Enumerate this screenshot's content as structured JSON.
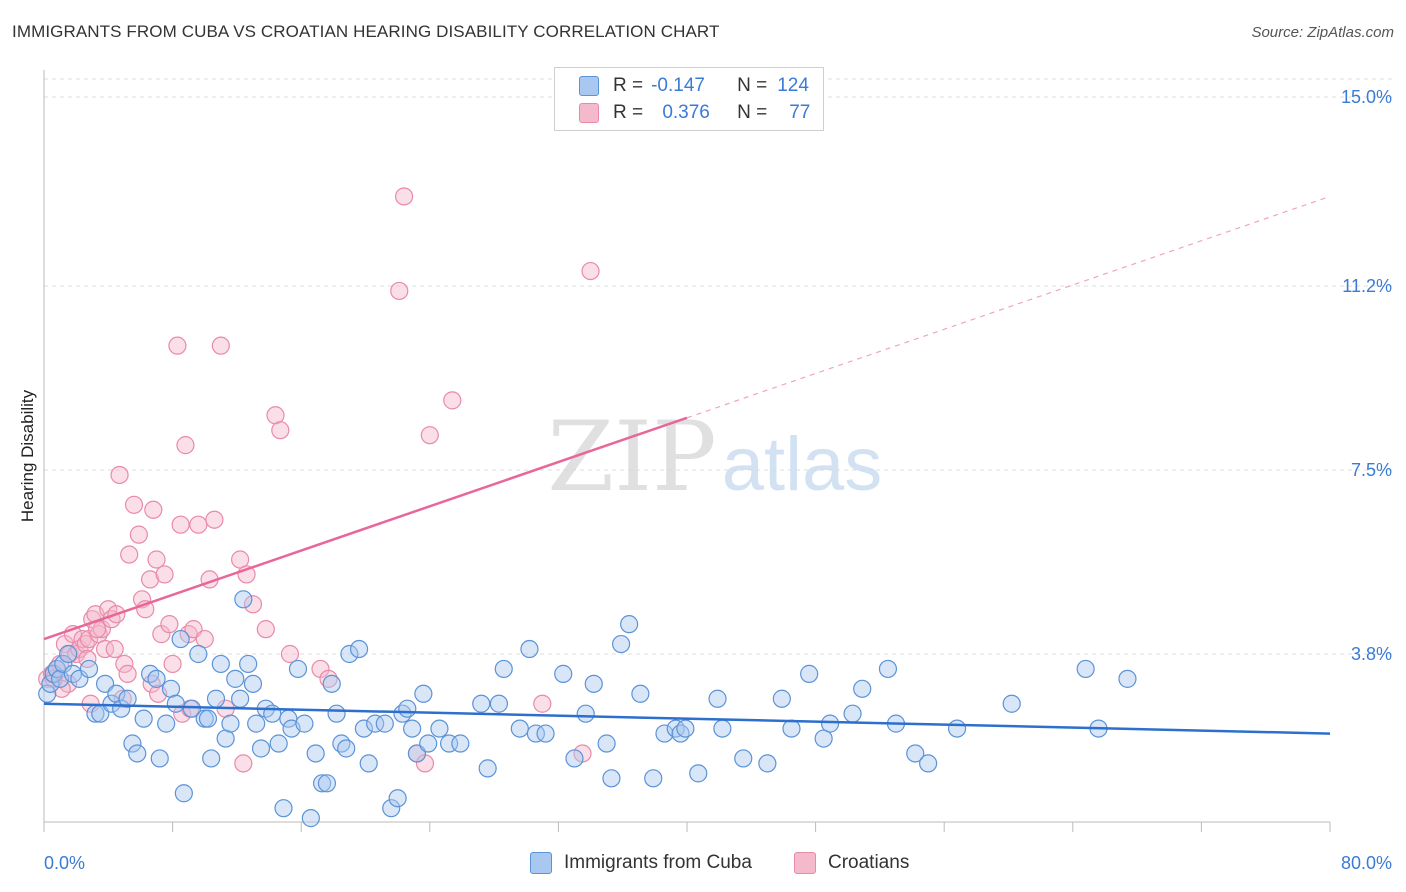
{
  "header": {
    "title": "IMMIGRANTS FROM CUBA VS CROATIAN HEARING DISABILITY CORRELATION CHART",
    "source": "Source: ZipAtlas.com"
  },
  "legend": {
    "rows": [
      {
        "r_label": "R =",
        "r_value": "-0.147",
        "n_label": "N =",
        "n_value": "124"
      },
      {
        "r_label": "R =",
        "r_value": "0.376",
        "n_label": "N =",
        "n_value": "77"
      }
    ],
    "bottom": [
      "Immigrants from Cuba",
      "Croatians"
    ]
  },
  "watermark": {
    "zip": "ZIP",
    "atlas": "atlas"
  },
  "colors": {
    "blue_fill": "#a9c8f0",
    "blue_stroke": "#5b93d8",
    "blue_line": "#2d6fcc",
    "pink_fill": "#f5b9cc",
    "pink_stroke": "#e98aa8",
    "pink_line": "#e8679a",
    "tick_text": "#3a7bd5",
    "grid": "#dddddd"
  },
  "chart_data": {
    "type": "scatter",
    "title": "IMMIGRANTS FROM CUBA VS CROATIAN HEARING DISABILITY CORRELATION CHART",
    "xlabel": "",
    "ylabel": "Hearing Disability",
    "xlim": [
      0,
      80
    ],
    "ylim": [
      0,
      15.5
    ],
    "x_tick_labels": [
      "0.0%",
      "80.0%"
    ],
    "y_ticks": [
      3.8,
      7.5,
      11.2,
      15.0
    ],
    "y_tick_labels": [
      "3.8%",
      "7.5%",
      "11.2%",
      "15.0%"
    ],
    "grid": true,
    "legend_position": "top-center",
    "series": [
      {
        "name": "Immigrants from Cuba",
        "color": "#5b93d8",
        "trend": {
          "x": [
            0,
            80
          ],
          "y": [
            2.8,
            2.2
          ],
          "dashed_from": null
        },
        "points": [
          [
            0.2,
            3.0
          ],
          [
            0.4,
            3.2
          ],
          [
            0.6,
            3.4
          ],
          [
            0.8,
            3.5
          ],
          [
            1.0,
            3.3
          ],
          [
            1.2,
            3.6
          ],
          [
            1.5,
            3.8
          ],
          [
            1.8,
            3.4
          ],
          [
            2.2,
            3.3
          ],
          [
            2.8,
            3.5
          ],
          [
            3.2,
            2.6
          ],
          [
            3.5,
            2.6
          ],
          [
            3.8,
            3.2
          ],
          [
            4.2,
            2.8
          ],
          [
            4.5,
            3.0
          ],
          [
            4.8,
            2.7
          ],
          [
            5.2,
            2.9
          ],
          [
            5.5,
            2.0
          ],
          [
            5.8,
            1.8
          ],
          [
            6.2,
            2.5
          ],
          [
            6.6,
            3.4
          ],
          [
            7.0,
            3.3
          ],
          [
            7.2,
            1.7
          ],
          [
            7.6,
            2.4
          ],
          [
            7.9,
            3.1
          ],
          [
            8.2,
            2.8
          ],
          [
            8.5,
            4.1
          ],
          [
            8.7,
            1.0
          ],
          [
            9.2,
            2.7
          ],
          [
            9.6,
            3.8
          ],
          [
            10.0,
            2.5
          ],
          [
            10.2,
            2.5
          ],
          [
            10.4,
            1.7
          ],
          [
            10.7,
            2.9
          ],
          [
            11.0,
            3.6
          ],
          [
            11.3,
            2.1
          ],
          [
            11.6,
            2.4
          ],
          [
            11.9,
            3.3
          ],
          [
            12.2,
            2.9
          ],
          [
            12.4,
            4.9
          ],
          [
            12.7,
            3.6
          ],
          [
            13.0,
            3.2
          ],
          [
            13.2,
            2.4
          ],
          [
            13.5,
            1.9
          ],
          [
            13.8,
            2.7
          ],
          [
            14.2,
            2.6
          ],
          [
            14.6,
            2.0
          ],
          [
            14.9,
            0.7
          ],
          [
            15.2,
            2.5
          ],
          [
            15.4,
            2.3
          ],
          [
            15.8,
            3.5
          ],
          [
            16.2,
            2.4
          ],
          [
            16.6,
            0.5
          ],
          [
            16.9,
            1.8
          ],
          [
            17.3,
            1.2
          ],
          [
            17.6,
            1.2
          ],
          [
            17.9,
            3.2
          ],
          [
            18.2,
            2.6
          ],
          [
            18.5,
            2.0
          ],
          [
            18.8,
            1.9
          ],
          [
            19.0,
            3.8
          ],
          [
            19.6,
            3.9
          ],
          [
            19.9,
            2.3
          ],
          [
            20.2,
            1.6
          ],
          [
            20.6,
            2.4
          ],
          [
            21.2,
            2.4
          ],
          [
            21.6,
            0.7
          ],
          [
            22.0,
            0.9
          ],
          [
            22.3,
            2.6
          ],
          [
            22.6,
            2.7
          ],
          [
            22.9,
            2.3
          ],
          [
            23.2,
            1.8
          ],
          [
            23.6,
            3.0
          ],
          [
            23.9,
            2.0
          ],
          [
            24.6,
            2.3
          ],
          [
            25.2,
            2.0
          ],
          [
            25.9,
            2.0
          ],
          [
            27.2,
            2.8
          ],
          [
            27.6,
            1.5
          ],
          [
            28.3,
            2.8
          ],
          [
            28.6,
            3.5
          ],
          [
            29.6,
            2.3
          ],
          [
            30.2,
            3.9
          ],
          [
            30.6,
            2.2
          ],
          [
            31.2,
            2.2
          ],
          [
            32.3,
            3.4
          ],
          [
            33.0,
            1.7
          ],
          [
            33.7,
            2.6
          ],
          [
            34.2,
            3.2
          ],
          [
            35.0,
            2.0
          ],
          [
            35.3,
            1.3
          ],
          [
            35.9,
            4.0
          ],
          [
            36.4,
            4.4
          ],
          [
            37.1,
            3.0
          ],
          [
            37.9,
            1.3
          ],
          [
            38.6,
            2.2
          ],
          [
            39.3,
            2.3
          ],
          [
            39.6,
            2.2
          ],
          [
            39.9,
            2.3
          ],
          [
            40.7,
            1.4
          ],
          [
            41.9,
            2.9
          ],
          [
            42.2,
            2.3
          ],
          [
            43.5,
            1.7
          ],
          [
            45.0,
            1.6
          ],
          [
            45.9,
            2.9
          ],
          [
            46.5,
            2.3
          ],
          [
            47.6,
            3.4
          ],
          [
            48.5,
            2.1
          ],
          [
            48.9,
            2.4
          ],
          [
            50.3,
            2.6
          ],
          [
            50.9,
            3.1
          ],
          [
            52.5,
            3.5
          ],
          [
            53.0,
            2.4
          ],
          [
            54.2,
            1.8
          ],
          [
            55.0,
            1.6
          ],
          [
            56.8,
            2.3
          ],
          [
            60.2,
            2.8
          ],
          [
            64.8,
            3.5
          ],
          [
            65.6,
            2.3
          ],
          [
            67.4,
            3.3
          ]
        ]
      },
      {
        "name": "Croatians",
        "color": "#e98aa8",
        "trend": {
          "x": [
            0,
            80
          ],
          "y": [
            4.1,
            13.0
          ],
          "dashed_from": 40
        },
        "points": [
          [
            0.2,
            3.3
          ],
          [
            0.5,
            3.4
          ],
          [
            0.8,
            3.5
          ],
          [
            1.0,
            3.6
          ],
          [
            1.3,
            4.0
          ],
          [
            1.6,
            3.8
          ],
          [
            1.8,
            4.2
          ],
          [
            2.0,
            3.8
          ],
          [
            2.2,
            3.9
          ],
          [
            2.4,
            4.1
          ],
          [
            2.6,
            4.0
          ],
          [
            2.8,
            4.1
          ],
          [
            3.0,
            4.5
          ],
          [
            3.2,
            4.6
          ],
          [
            3.4,
            4.2
          ],
          [
            3.6,
            4.3
          ],
          [
            3.8,
            3.9
          ],
          [
            4.0,
            4.7
          ],
          [
            4.2,
            4.5
          ],
          [
            4.4,
            3.9
          ],
          [
            4.5,
            4.6
          ],
          [
            4.7,
            7.4
          ],
          [
            5.0,
            3.6
          ],
          [
            5.3,
            5.8
          ],
          [
            5.6,
            6.8
          ],
          [
            5.9,
            6.2
          ],
          [
            6.1,
            4.9
          ],
          [
            6.3,
            4.7
          ],
          [
            6.6,
            5.3
          ],
          [
            6.8,
            6.7
          ],
          [
            7.0,
            5.7
          ],
          [
            7.3,
            4.2
          ],
          [
            7.5,
            5.4
          ],
          [
            7.8,
            4.4
          ],
          [
            8.0,
            3.6
          ],
          [
            8.3,
            10.0
          ],
          [
            8.5,
            6.4
          ],
          [
            8.8,
            8.0
          ],
          [
            9.0,
            4.2
          ],
          [
            9.3,
            4.3
          ],
          [
            9.6,
            6.4
          ],
          [
            10.0,
            4.1
          ],
          [
            10.3,
            5.3
          ],
          [
            10.6,
            6.5
          ],
          [
            11.0,
            10.0
          ],
          [
            11.3,
            2.7
          ],
          [
            12.2,
            5.7
          ],
          [
            12.6,
            5.4
          ],
          [
            13.0,
            4.8
          ],
          [
            13.8,
            4.3
          ],
          [
            14.4,
            8.6
          ],
          [
            14.7,
            8.3
          ],
          [
            15.3,
            3.8
          ],
          [
            17.2,
            3.5
          ],
          [
            17.7,
            3.3
          ],
          [
            22.1,
            11.1
          ],
          [
            22.4,
            13.0
          ],
          [
            23.2,
            1.8
          ],
          [
            23.7,
            1.6
          ],
          [
            24.0,
            8.2
          ],
          [
            25.4,
            8.9
          ],
          [
            31.0,
            2.8
          ],
          [
            33.5,
            1.8
          ],
          [
            34.0,
            11.5
          ],
          [
            1.5,
            3.2
          ],
          [
            2.7,
            3.7
          ],
          [
            3.3,
            4.3
          ],
          [
            5.2,
            3.4
          ],
          [
            6.7,
            3.2
          ],
          [
            7.1,
            3.0
          ],
          [
            8.6,
            2.6
          ],
          [
            9.1,
            2.7
          ],
          [
            12.4,
            1.6
          ],
          [
            1.1,
            3.1
          ],
          [
            0.6,
            3.3
          ],
          [
            2.9,
            2.8
          ],
          [
            4.9,
            2.9
          ]
        ]
      }
    ]
  }
}
